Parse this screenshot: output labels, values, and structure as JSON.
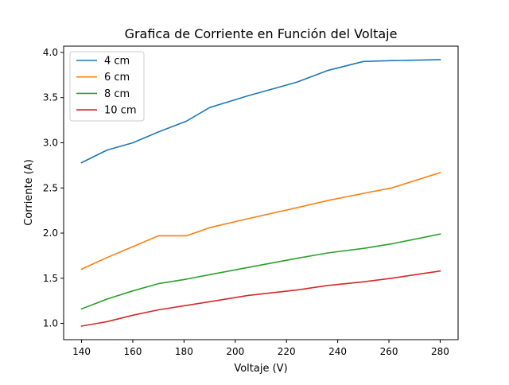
{
  "chart_data": {
    "type": "line",
    "title": "Grafica de Corriente en Función del Voltaje",
    "xlabel": "Voltaje (V)",
    "ylabel": "Corriente (A)",
    "xlim": [
      133.0,
      287.0
    ],
    "ylim": [
      0.82,
      4.07
    ],
    "xticks": [
      140,
      160,
      180,
      200,
      220,
      240,
      260,
      280
    ],
    "yticks": [
      1.0,
      1.5,
      2.0,
      2.5,
      3.0,
      3.5,
      4.0
    ],
    "xtick_labels": [
      "140",
      "160",
      "180",
      "200",
      "220",
      "240",
      "260",
      "280"
    ],
    "ytick_labels": [
      "1.0",
      "1.5",
      "2.0",
      "2.5",
      "3.0",
      "3.5",
      "4.0"
    ],
    "grid": false,
    "legend_position": "upper-left",
    "series": [
      {
        "name": "4 cm",
        "color": "#1f77b4",
        "x": [
          140,
          150,
          160,
          170,
          181,
          190,
          205,
          224,
          236,
          250,
          261,
          280
        ],
        "y": [
          2.78,
          2.92,
          3.0,
          3.12,
          3.24,
          3.39,
          3.52,
          3.67,
          3.8,
          3.9,
          3.91,
          3.92
        ]
      },
      {
        "name": "6 cm",
        "color": "#ff7f0e",
        "x": [
          140,
          150,
          160,
          170,
          181,
          190,
          205,
          224,
          236,
          250,
          261,
          280
        ],
        "y": [
          1.6,
          1.73,
          1.85,
          1.97,
          1.97,
          2.06,
          2.16,
          2.28,
          2.36,
          2.44,
          2.5,
          2.67
        ]
      },
      {
        "name": "8 cm",
        "color": "#2ca02c",
        "x": [
          140,
          150,
          160,
          170,
          181,
          190,
          205,
          224,
          236,
          250,
          261,
          280
        ],
        "y": [
          1.16,
          1.27,
          1.36,
          1.44,
          1.49,
          1.54,
          1.62,
          1.72,
          1.78,
          1.83,
          1.88,
          1.99
        ]
      },
      {
        "name": "10 cm",
        "color": "#d62728",
        "x": [
          140,
          150,
          160,
          170,
          181,
          190,
          205,
          224,
          236,
          250,
          261,
          280
        ],
        "y": [
          0.97,
          1.02,
          1.09,
          1.15,
          1.2,
          1.24,
          1.31,
          1.37,
          1.42,
          1.46,
          1.5,
          1.58
        ]
      }
    ]
  }
}
